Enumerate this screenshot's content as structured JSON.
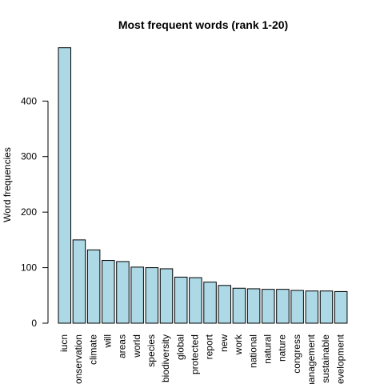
{
  "chart_data": {
    "type": "bar",
    "title": "Most frequent words (rank 1-20)",
    "xlabel": "",
    "ylabel": "Word frequencies",
    "ylim": [
      0,
      500
    ],
    "yticks": [
      0,
      100,
      200,
      300,
      400
    ],
    "categories": [
      "iucn",
      "conservation",
      "climate",
      "will",
      "areas",
      "world",
      "species",
      "biodiversity",
      "global",
      "protected",
      "report",
      "new",
      "work",
      "national",
      "natural",
      "nature",
      "congress",
      "management",
      "sustainable",
      "development"
    ],
    "values": [
      496,
      150,
      132,
      113,
      111,
      101,
      100,
      98,
      83,
      82,
      74,
      68,
      63,
      62,
      61,
      61,
      59,
      58,
      58,
      57
    ],
    "bar_color": "#add8e6",
    "bar_border": "#000000",
    "grid": false
  }
}
